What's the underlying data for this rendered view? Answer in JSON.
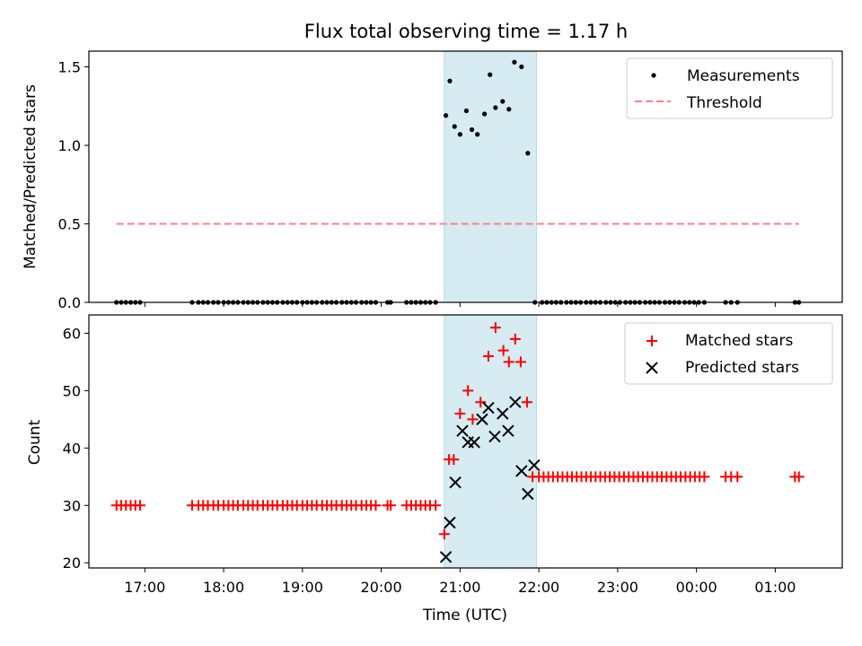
{
  "chart_data": [
    {
      "type": "scatter",
      "title": "Flux total observing time = 1.17 h",
      "xlabel": "",
      "ylabel": "Matched/Predicted stars",
      "x_unit": "hours since 00:00 UTC of the first day",
      "xlim": [
        16.29,
        25.85
      ],
      "ylim": [
        0,
        1.6
      ],
      "yticks": [
        0.0,
        0.5,
        1.0,
        1.5
      ],
      "ytick_labels": [
        "0.0",
        "0.5",
        "1.0",
        "1.5"
      ],
      "highlight_span": [
        20.8,
        21.97
      ],
      "legend_position": "upper right",
      "series": [
        {
          "name": "Measurements",
          "marker": "dot",
          "color": "#000000",
          "x": [
            16.64,
            16.7,
            16.76,
            16.82,
            16.88,
            16.94,
            17.6,
            17.68,
            17.74,
            17.8,
            17.87,
            17.93,
            18.0,
            18.06,
            18.12,
            18.18,
            18.25,
            18.31,
            18.37,
            18.43,
            18.5,
            18.56,
            18.62,
            18.68,
            18.75,
            18.81,
            18.87,
            18.93,
            19.0,
            19.06,
            19.12,
            19.18,
            19.25,
            19.31,
            19.37,
            19.43,
            19.5,
            19.56,
            19.62,
            19.68,
            19.75,
            19.81,
            19.87,
            19.93,
            20.08,
            20.12,
            20.32,
            20.38,
            20.44,
            20.5,
            20.56,
            20.62,
            20.69,
            20.82,
            20.87,
            20.93,
            21.0,
            21.08,
            21.15,
            21.22,
            21.31,
            21.38,
            21.45,
            21.54,
            21.62,
            21.69,
            21.78,
            21.86,
            21.95,
            22.04,
            22.1,
            22.16,
            22.22,
            22.28,
            22.35,
            22.41,
            22.47,
            22.53,
            22.6,
            22.66,
            22.72,
            22.78,
            22.85,
            22.91,
            22.97,
            23.03,
            23.1,
            23.16,
            23.22,
            23.28,
            23.35,
            23.41,
            23.47,
            23.53,
            23.6,
            23.66,
            23.72,
            23.78,
            23.85,
            23.91,
            23.97,
            24.03,
            24.1,
            24.37,
            24.44,
            24.52,
            25.25,
            25.3
          ],
          "y": [
            0,
            0,
            0,
            0,
            0,
            0,
            0,
            0,
            0,
            0,
            0,
            0,
            0,
            0,
            0,
            0,
            0,
            0,
            0,
            0,
            0,
            0,
            0,
            0,
            0,
            0,
            0,
            0,
            0,
            0,
            0,
            0,
            0,
            0,
            0,
            0,
            0,
            0,
            0,
            0,
            0,
            0,
            0,
            0,
            0,
            0,
            0,
            0,
            0,
            0,
            0,
            0,
            0,
            1.19,
            1.41,
            1.12,
            1.07,
            1.22,
            1.1,
            1.07,
            1.2,
            1.45,
            1.24,
            1.28,
            1.23,
            1.53,
            1.5,
            0.95,
            0,
            0,
            0,
            0,
            0,
            0,
            0,
            0,
            0,
            0,
            0,
            0,
            0,
            0,
            0,
            0,
            0,
            0,
            0,
            0,
            0,
            0,
            0,
            0,
            0,
            0,
            0,
            0,
            0,
            0,
            0,
            0,
            0,
            0,
            0,
            0,
            0,
            0,
            0,
            0
          ]
        },
        {
          "name": "Threshold",
          "marker": "dashed-line",
          "color": "#ff8080",
          "x": [
            16.64,
            25.3
          ],
          "y": [
            0.5,
            0.5
          ]
        }
      ],
      "xtick_labels": []
    },
    {
      "type": "scatter",
      "title": "",
      "xlabel": "Time (UTC)",
      "ylabel": "Count",
      "x_unit": "hours since 00:00 UTC of the first day",
      "xlim": [
        16.29,
        25.85
      ],
      "ylim": [
        19.1,
        63.2
      ],
      "yticks": [
        20,
        30,
        40,
        50,
        60
      ],
      "ytick_labels": [
        "20",
        "30",
        "40",
        "50",
        "60"
      ],
      "xticks": [
        17,
        18,
        19,
        20,
        21,
        22,
        23,
        24,
        25
      ],
      "xtick_labels": [
        "17:00",
        "18:00",
        "19:00",
        "20:00",
        "21:00",
        "22:00",
        "23:00",
        "00:00",
        "01:00"
      ],
      "highlight_span": [
        20.8,
        21.97
      ],
      "legend_position": "upper right",
      "series": [
        {
          "name": "Matched stars",
          "marker": "plus",
          "color": "#ff0000",
          "x": [
            16.64,
            16.7,
            16.76,
            16.82,
            16.88,
            16.94,
            17.6,
            17.68,
            17.74,
            17.8,
            17.87,
            17.93,
            18.0,
            18.06,
            18.12,
            18.18,
            18.25,
            18.31,
            18.37,
            18.43,
            18.5,
            18.56,
            18.62,
            18.68,
            18.75,
            18.81,
            18.87,
            18.93,
            19.0,
            19.06,
            19.12,
            19.18,
            19.25,
            19.31,
            19.37,
            19.43,
            19.5,
            19.56,
            19.62,
            19.68,
            19.75,
            19.81,
            19.87,
            19.93,
            20.08,
            20.12,
            20.32,
            20.38,
            20.44,
            20.5,
            20.56,
            20.62,
            20.69,
            20.8,
            20.86,
            20.92,
            21.0,
            21.1,
            21.16,
            21.26,
            21.36,
            21.45,
            21.55,
            21.62,
            21.7,
            21.77,
            21.85,
            21.92,
            22.0,
            22.06,
            22.12,
            22.18,
            22.24,
            22.3,
            22.36,
            22.42,
            22.48,
            22.54,
            22.6,
            22.66,
            22.72,
            22.78,
            22.84,
            22.9,
            22.96,
            23.02,
            23.08,
            23.14,
            23.2,
            23.26,
            23.32,
            23.38,
            23.44,
            23.5,
            23.56,
            23.62,
            23.68,
            23.74,
            23.8,
            23.86,
            23.92,
            23.98,
            24.04,
            24.1,
            24.37,
            24.44,
            24.52,
            25.25,
            25.3
          ],
          "y": [
            30,
            30,
            30,
            30,
            30,
            30,
            30,
            30,
            30,
            30,
            30,
            30,
            30,
            30,
            30,
            30,
            30,
            30,
            30,
            30,
            30,
            30,
            30,
            30,
            30,
            30,
            30,
            30,
            30,
            30,
            30,
            30,
            30,
            30,
            30,
            30,
            30,
            30,
            30,
            30,
            30,
            30,
            30,
            30,
            30,
            30,
            30,
            30,
            30,
            30,
            30,
            30,
            30,
            25,
            38,
            38,
            46,
            50,
            45,
            48,
            56,
            61,
            57,
            55,
            59,
            55,
            48,
            35,
            35,
            35,
            35,
            35,
            35,
            35,
            35,
            35,
            35,
            35,
            35,
            35,
            35,
            35,
            35,
            35,
            35,
            35,
            35,
            35,
            35,
            35,
            35,
            35,
            35,
            35,
            35,
            35,
            35,
            35,
            35,
            35,
            35,
            35,
            35,
            35,
            35,
            35,
            35,
            35,
            35
          ]
        },
        {
          "name": "Predicted stars",
          "marker": "x",
          "color": "#000000",
          "x": [
            20.82,
            20.87,
            20.94,
            21.03,
            21.1,
            21.18,
            21.28,
            21.36,
            21.44,
            21.54,
            21.61,
            21.7,
            21.78,
            21.86,
            21.94
          ],
          "y": [
            21,
            27,
            34,
            43,
            41,
            41,
            45,
            47,
            42,
            46,
            43,
            48,
            36,
            32,
            37
          ]
        }
      ]
    }
  ]
}
